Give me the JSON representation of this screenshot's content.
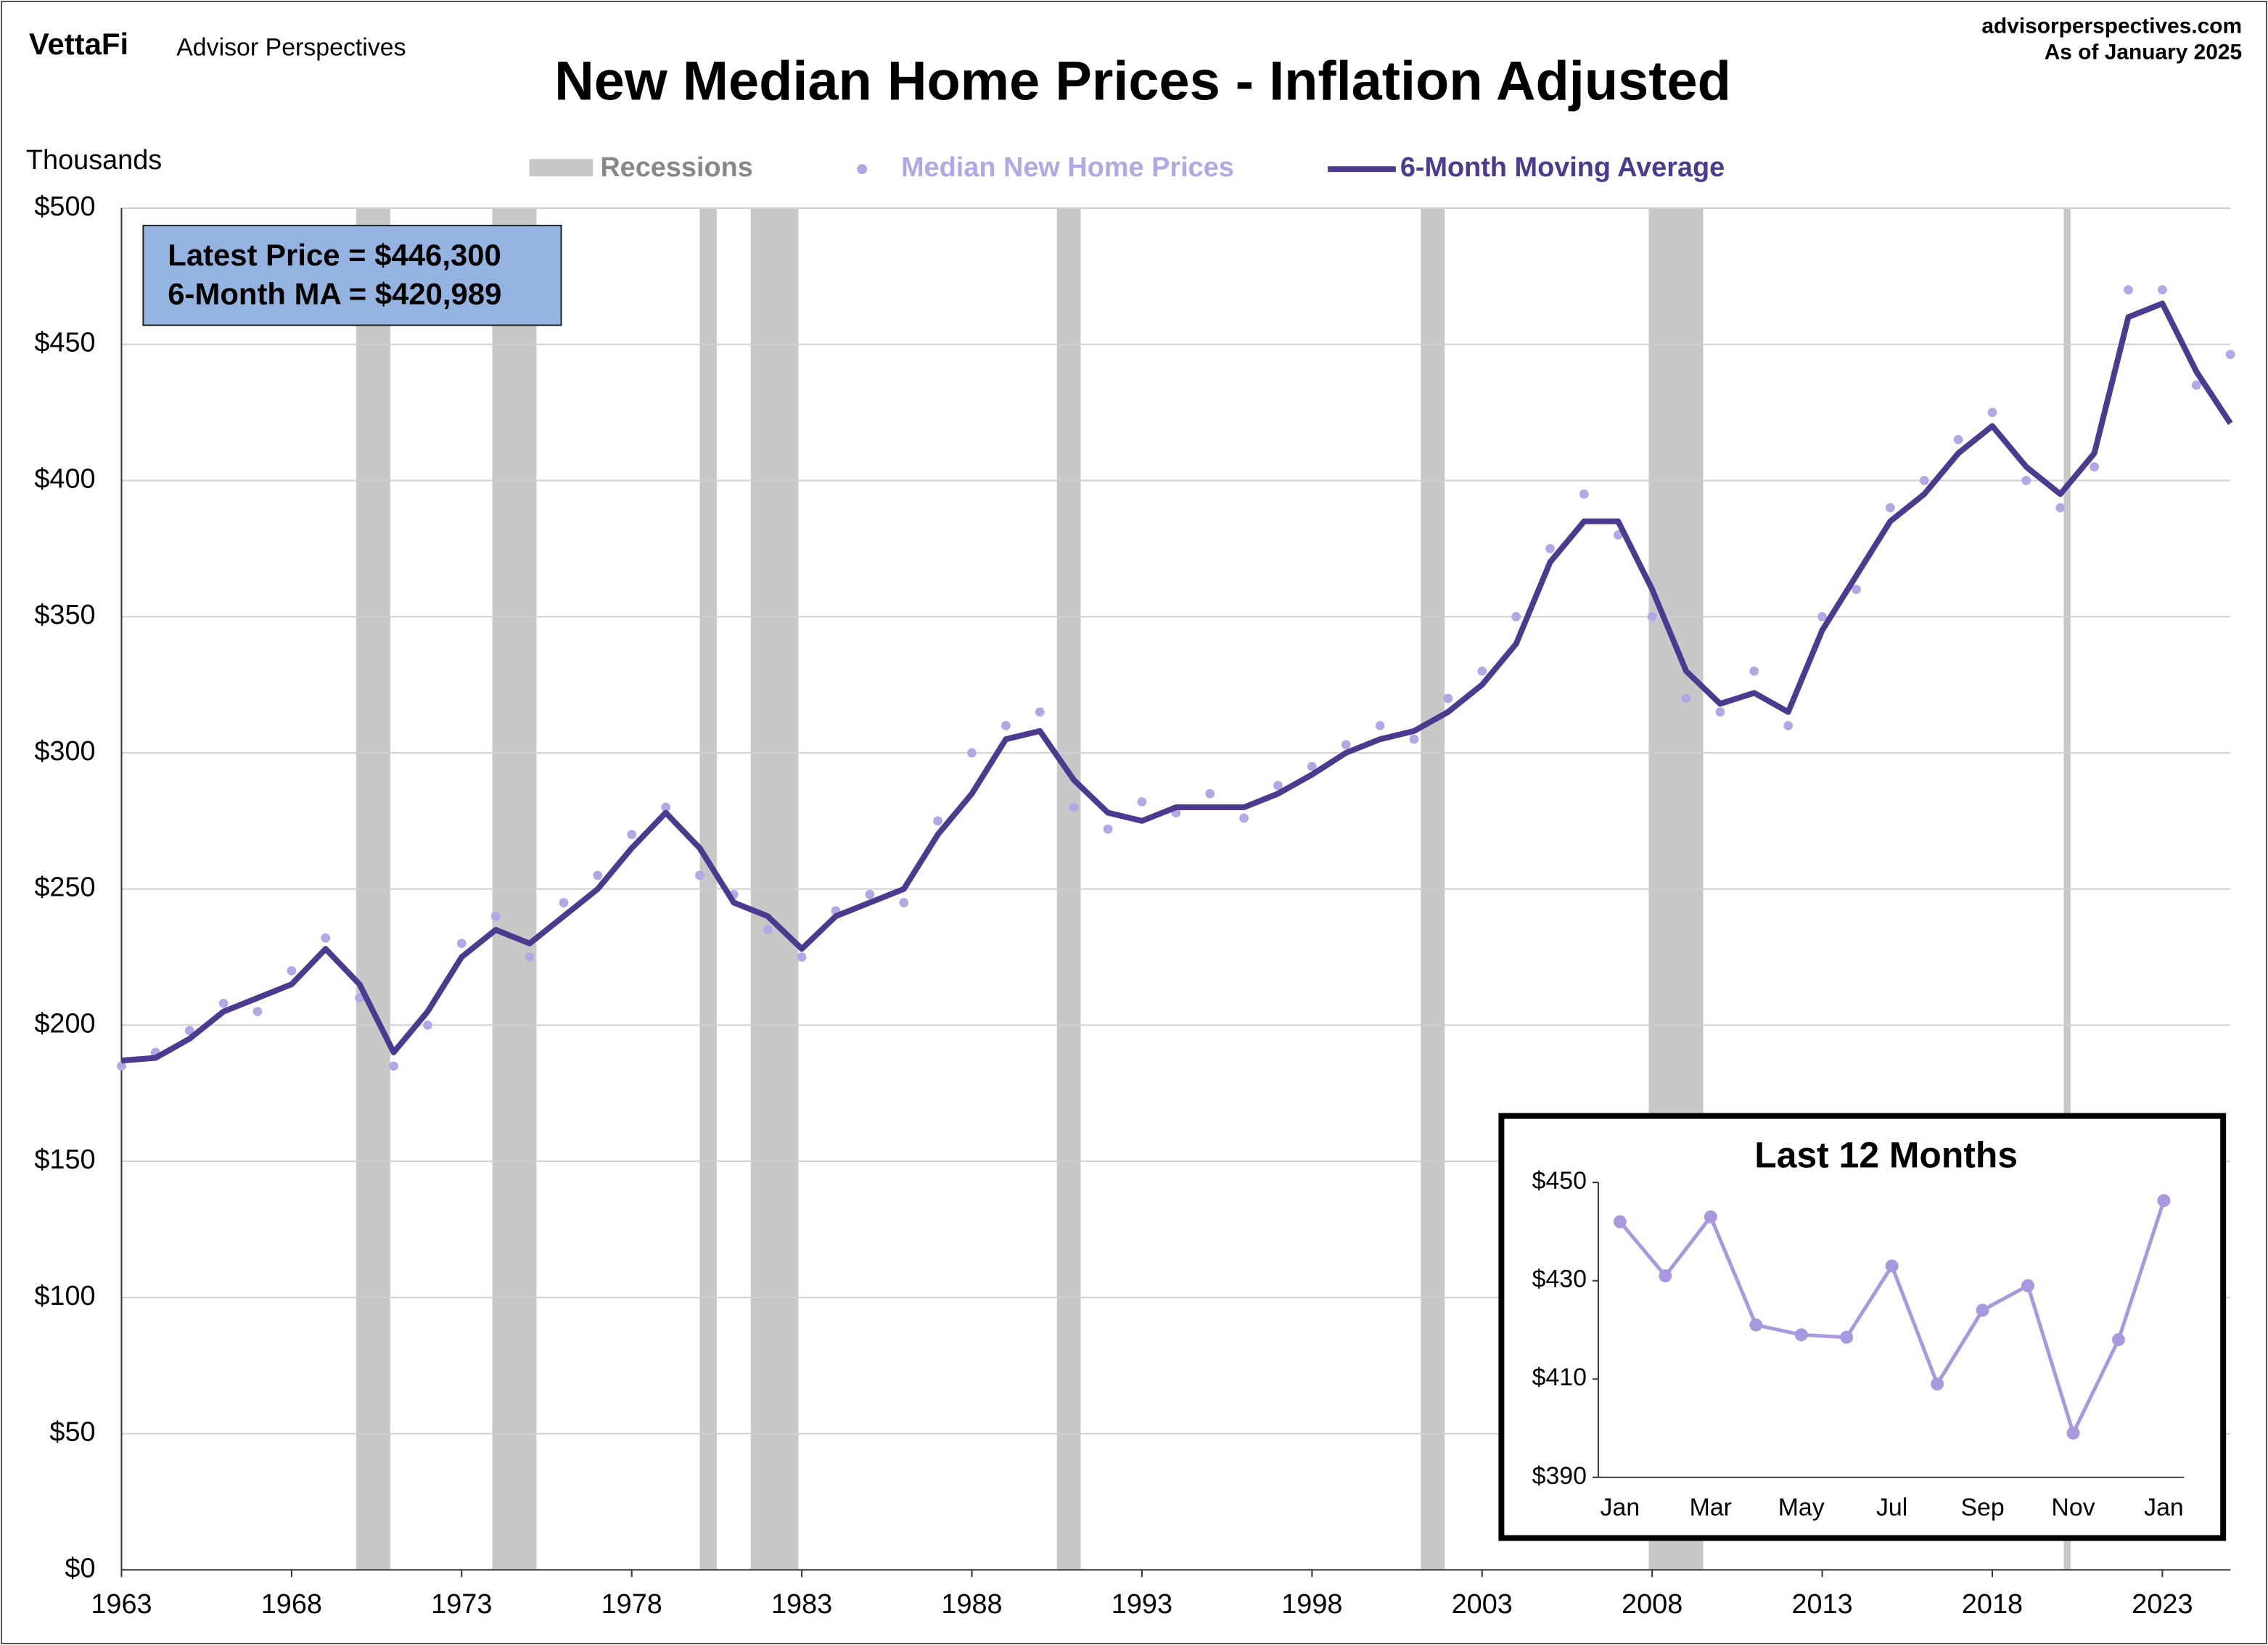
{
  "header": {
    "logo": "VettaFi",
    "brand": "Advisor Perspectives",
    "source": "advisorperspectives.com",
    "date": "As of January 2025"
  },
  "chart_data": [
    {
      "type": "line",
      "title": "New Median Home Prices - Inflation Adjusted",
      "y_label": "Thousands",
      "annotations": [
        "Latest Price = $446,300",
        "6-Month MA = $420,989"
      ],
      "shaded_periods": {
        "name": "Recessions",
        "color": "#c8c8c8",
        "ranges": [
          [
            1969.9,
            1970.9
          ],
          [
            1973.9,
            1975.2
          ],
          [
            1980.0,
            1980.5
          ],
          [
            1981.5,
            1982.9
          ],
          [
            1990.5,
            1991.2
          ],
          [
            2001.2,
            2001.9
          ],
          [
            2007.9,
            2009.5
          ],
          [
            2020.1,
            2020.3
          ]
        ]
      },
      "x": [
        1963,
        1964,
        1965,
        1966,
        1967,
        1968,
        1969,
        1970,
        1971,
        1972,
        1973,
        1974,
        1975,
        1976,
        1977,
        1978,
        1979,
        1980,
        1981,
        1982,
        1983,
        1984,
        1985,
        1986,
        1987,
        1988,
        1989,
        1990,
        1991,
        1992,
        1993,
        1994,
        1995,
        1996,
        1997,
        1998,
        1999,
        2000,
        2001,
        2002,
        2003,
        2004,
        2005,
        2006,
        2007,
        2008,
        2009,
        2010,
        2011,
        2012,
        2013,
        2014,
        2015,
        2016,
        2017,
        2018,
        2019,
        2020,
        2021,
        2022,
        2023,
        2024,
        2025
      ],
      "series": [
        {
          "name": "Median New Home Prices",
          "color": "#b4a7e6",
          "mode": "markers",
          "values": [
            185,
            190,
            198,
            208,
            205,
            220,
            232,
            210,
            185,
            200,
            230,
            240,
            225,
            245,
            255,
            270,
            280,
            255,
            248,
            235,
            225,
            242,
            248,
            245,
            275,
            300,
            310,
            315,
            280,
            272,
            282,
            278,
            285,
            276,
            288,
            295,
            303,
            310,
            305,
            320,
            330,
            350,
            375,
            395,
            380,
            350,
            320,
            315,
            330,
            310,
            350,
            360,
            390,
            400,
            415,
            425,
            400,
            390,
            405,
            470,
            470,
            435,
            446.3
          ]
        },
        {
          "name": "6-Month Moving Average",
          "color": "#4b3a8f",
          "mode": "line",
          "values": [
            187,
            188,
            195,
            205,
            210,
            215,
            228,
            215,
            190,
            205,
            225,
            235,
            230,
            240,
            250,
            265,
            278,
            265,
            245,
            240,
            228,
            240,
            245,
            250,
            270,
            285,
            305,
            308,
            290,
            278,
            275,
            280,
            280,
            280,
            285,
            292,
            300,
            305,
            308,
            315,
            325,
            340,
            370,
            385,
            385,
            360,
            330,
            318,
            322,
            315,
            345,
            365,
            385,
            395,
            410,
            420,
            405,
            395,
            410,
            460,
            465,
            440,
            420.989
          ]
        }
      ],
      "xlim": [
        1963,
        2025
      ],
      "xticks": [
        1963,
        1968,
        1973,
        1978,
        1983,
        1988,
        1993,
        1998,
        2003,
        2008,
        2013,
        2018,
        2023
      ],
      "ylim": [
        0,
        500
      ],
      "yticks": [
        {
          "value": 0,
          "label": "$0"
        },
        {
          "value": 50,
          "label": "$50"
        },
        {
          "value": 100,
          "label": "$100"
        },
        {
          "value": 150,
          "label": "$150"
        },
        {
          "value": 200,
          "label": "$200"
        },
        {
          "value": 250,
          "label": "$250"
        },
        {
          "value": 300,
          "label": "$300"
        },
        {
          "value": 350,
          "label": "$350"
        },
        {
          "value": 400,
          "label": "$400"
        },
        {
          "value": 450,
          "label": "$450"
        },
        {
          "value": 500,
          "label": "$500"
        }
      ],
      "grid": true
    },
    {
      "type": "line",
      "title": "Last 12 Months",
      "color": "#a898e0",
      "categories": [
        "Jan",
        null,
        "Mar",
        null,
        "May",
        null,
        "Jul",
        null,
        "Sep",
        null,
        "Nov",
        null,
        "Jan"
      ],
      "values": [
        442,
        431,
        443,
        421,
        419,
        418.5,
        433,
        409,
        424,
        429,
        399,
        418,
        446.3
      ],
      "ylim": [
        390,
        450
      ],
      "yticks": [
        {
          "value": 390,
          "label": "$390"
        },
        {
          "value": 410,
          "label": "$410"
        },
        {
          "value": 430,
          "label": "$430"
        },
        {
          "value": 450,
          "label": "$450"
        }
      ]
    }
  ]
}
